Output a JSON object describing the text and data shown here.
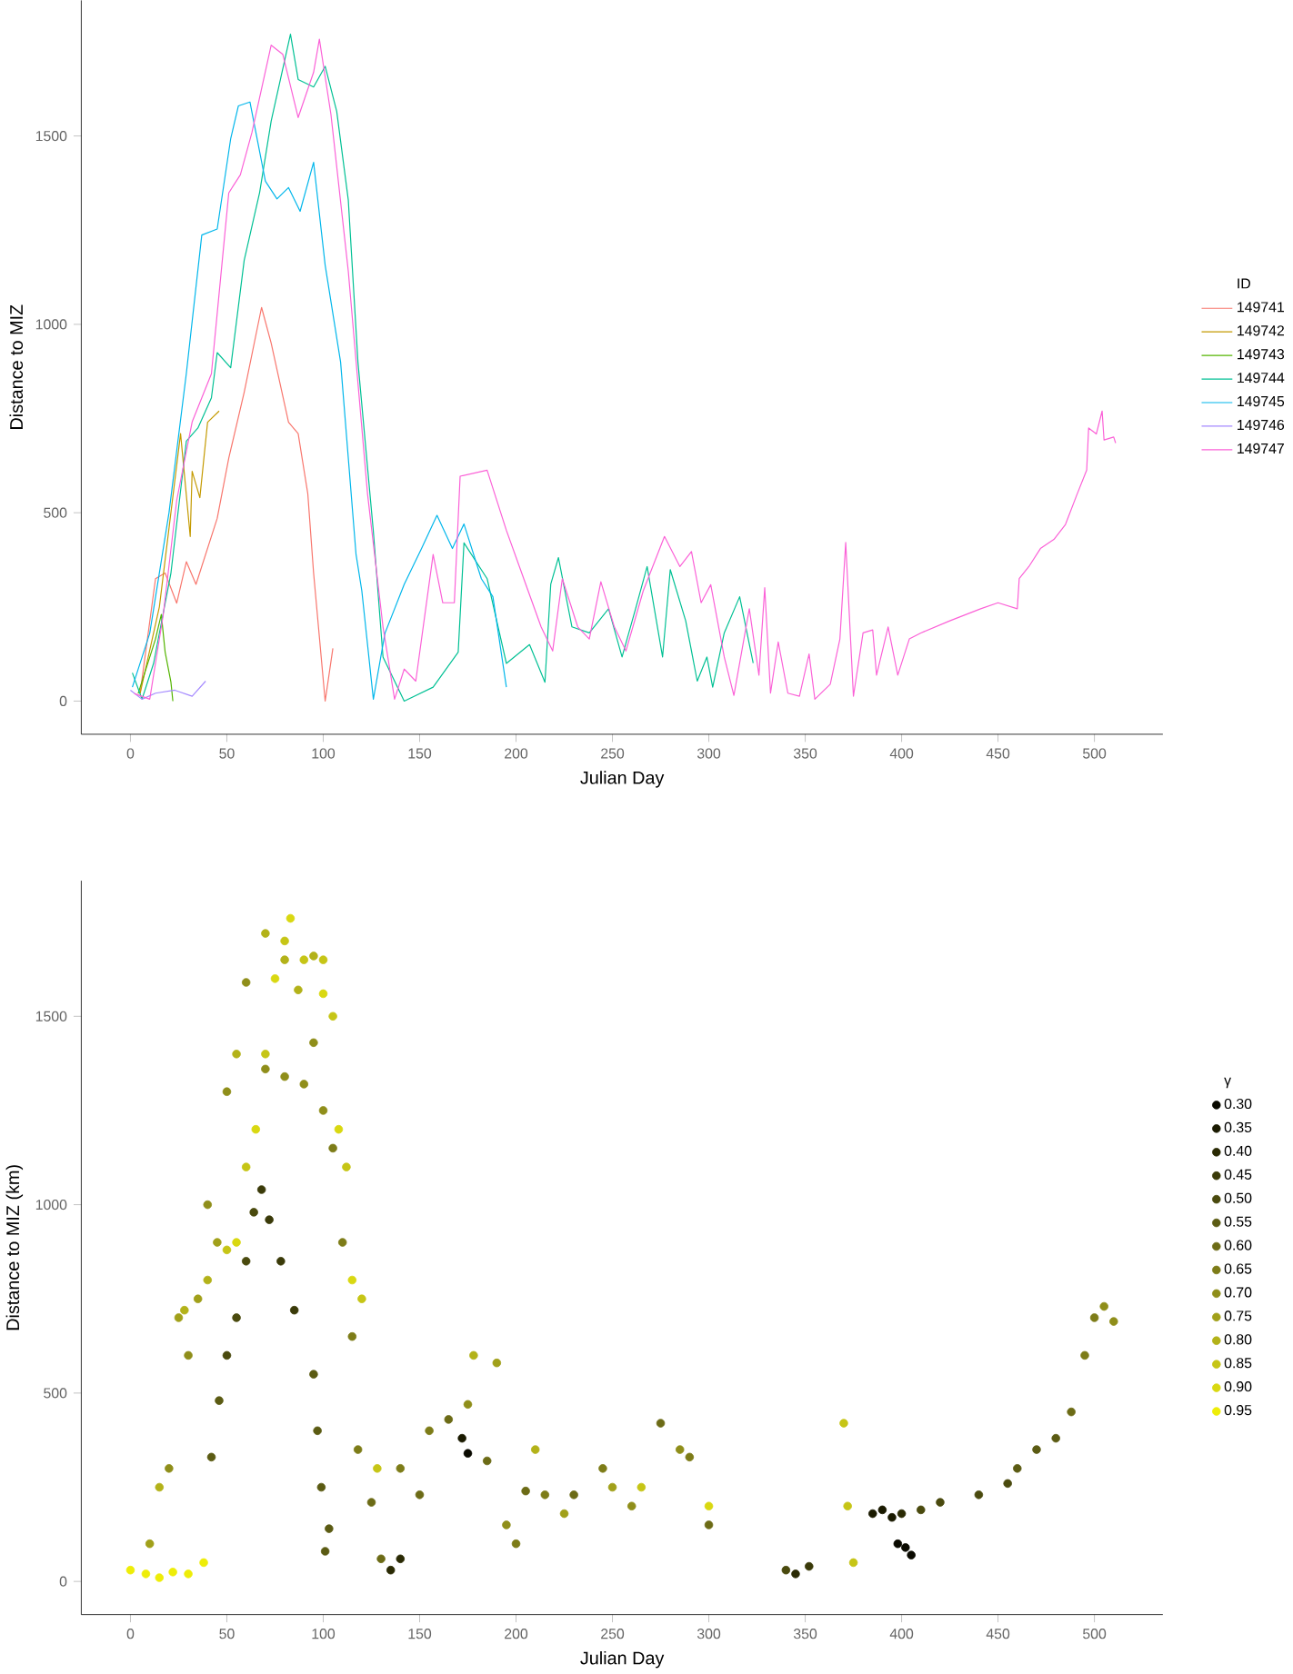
{
  "chart_data": [
    {
      "type": "line",
      "xlabel": "Julian Day",
      "ylabel": "Distance to MIZ",
      "legend_title": "ID",
      "legend": "right",
      "xlim": [
        -25.5,
        535.5
      ],
      "ylim": [
        -88,
        1860
      ],
      "xticks": [
        0,
        50,
        100,
        150,
        200,
        250,
        300,
        350,
        400,
        450,
        500
      ],
      "yticks": [
        0,
        500,
        1000,
        1500
      ],
      "series": [
        {
          "name": "149741",
          "color": "#f8766d",
          "x": [
            5,
            13,
            18,
            24,
            29,
            34,
            45,
            51,
            59,
            68,
            73,
            82,
            87,
            92,
            95,
            101,
            105
          ],
          "values": [
            20,
            325,
            340,
            260,
            370,
            310,
            485,
            645,
            820,
            1045,
            950,
            740,
            710,
            550,
            340,
            0,
            140
          ]
        },
        {
          "name": "149742",
          "color": "#c49a00",
          "x": [
            5,
            15,
            26,
            31,
            32,
            36,
            40,
            46
          ],
          "values": [
            20,
            250,
            710,
            437,
            610,
            540,
            740,
            770
          ]
        },
        {
          "name": "149743",
          "color": "#53b400",
          "x": [
            4,
            13,
            16,
            18,
            21,
            22
          ],
          "values": [
            20,
            165,
            230,
            130,
            50,
            0
          ]
        },
        {
          "name": "149744",
          "color": "#00c094",
          "x": [
            1,
            6,
            12,
            21,
            29,
            35,
            42,
            45,
            52,
            59,
            67,
            73,
            83,
            87,
            95,
            101,
            107,
            113,
            118,
            126,
            131,
            142,
            157,
            170,
            173,
            185,
            195,
            207,
            215,
            218,
            222,
            229,
            238,
            248,
            255,
            262,
            268,
            276,
            280,
            288,
            294,
            299,
            302,
            308,
            316,
            323
          ],
          "values": [
            75,
            5,
            100,
            340,
            690,
            725,
            805,
            925,
            885,
            1170,
            1350,
            1540,
            1770,
            1650,
            1630,
            1685,
            1565,
            1330,
            900,
            450,
            117,
            0,
            37,
            130,
            420,
            325,
            100,
            150,
            50,
            310,
            381,
            197,
            181,
            245,
            117,
            245,
            357,
            117,
            349,
            213,
            53,
            117,
            37,
            181,
            277,
            101
          ]
        },
        {
          "name": "149745",
          "color": "#00b6eb",
          "x": [
            1,
            10,
            20,
            29,
            37,
            45,
            52,
            56,
            62,
            70,
            76,
            82,
            88,
            95,
            101,
            109,
            117,
            120,
            126,
            132,
            142,
            151,
            159,
            167,
            173,
            182,
            188,
            195
          ],
          "values": [
            37,
            180,
            500,
            870,
            1237,
            1253,
            1493,
            1580,
            1590,
            1380,
            1333,
            1363,
            1300,
            1430,
            1157,
            900,
            390,
            293,
            5,
            180,
            310,
            405,
            493,
            405,
            470,
            325,
            277,
            37
          ]
        },
        {
          "name": "149746",
          "color": "#a58aff",
          "x": [
            0,
            6,
            13,
            23,
            32,
            39
          ],
          "values": [
            29,
            5,
            21,
            29,
            13,
            53
          ]
        },
        {
          "name": "149747",
          "color": "#fb61d7",
          "x": [
            2,
            10,
            17,
            24,
            32,
            42,
            51,
            57,
            63,
            73,
            79,
            87,
            95,
            98,
            104,
            113,
            123,
            131,
            137,
            142,
            148,
            157,
            162,
            168,
            171,
            185,
            195,
            204,
            213,
            219,
            224,
            232,
            238,
            244,
            251,
            257,
            266,
            277,
            285,
            291,
            296,
            301,
            308,
            313,
            321,
            326,
            329,
            332,
            336,
            341,
            347,
            352,
            355,
            363,
            368,
            371,
            375,
            380,
            385,
            387,
            393,
            398,
            404,
            410,
            425,
            441,
            450,
            460,
            461,
            466,
            472,
            479,
            485,
            491,
            496,
            497,
            501,
            504,
            505,
            510,
            511
          ],
          "values": [
            20,
            5,
            229,
            533,
            741,
            869,
            1349,
            1397,
            1509,
            1741,
            1717,
            1549,
            1669,
            1757,
            1557,
            1141,
            549,
            197,
            5,
            85,
            53,
            389,
            261,
            261,
            597,
            613,
            453,
            325,
            197,
            133,
            325,
            197,
            165,
            317,
            197,
            133,
            293,
            437,
            357,
            397,
            261,
            309,
            117,
            15,
            245,
            69,
            301,
            21,
            157,
            21,
            13,
            125,
            5,
            45,
            165,
            421,
            13,
            181,
            189,
            69,
            197,
            69,
            165,
            181,
            213,
            245,
            261,
            245,
            325,
            357,
            405,
            429,
            469,
            549,
            613,
            725,
            709,
            770,
            693,
            701,
            685
          ]
        }
      ]
    },
    {
      "type": "scatter",
      "xlabel": "Julian Day",
      "ylabel": "Distance to MIZ (km)",
      "legend_title": "γ",
      "legend": "right",
      "marker": "circle",
      "xlim": [
        -25.5,
        535.5
      ],
      "ylim": [
        -88,
        1860
      ],
      "xticks": [
        0,
        50,
        100,
        150,
        200,
        250,
        300,
        350,
        400,
        450,
        500
      ],
      "yticks": [
        0,
        500,
        1000,
        1500
      ],
      "series": [
        {
          "name": "0.30",
          "color": "#0a0a00",
          "x": [
            175,
            402,
            405,
            398
          ],
          "values": [
            340,
            90,
            70,
            100
          ]
        },
        {
          "name": "0.35",
          "color": "#1a1a00",
          "x": [
            385,
            390,
            395,
            172
          ],
          "values": [
            180,
            190,
            170,
            380
          ]
        },
        {
          "name": "0.40",
          "color": "#2a2a04",
          "x": [
            135,
            140,
            345,
            400
          ],
          "values": [
            30,
            60,
            20,
            180
          ]
        },
        {
          "name": "0.45",
          "color": "#3a3a09",
          "x": [
            68,
            72,
            78,
            85,
            352
          ],
          "values": [
            1040,
            960,
            850,
            720,
            40
          ]
        },
        {
          "name": "0.50",
          "color": "#4a4a0e",
          "x": [
            50,
            55,
            60,
            64,
            410,
            420,
            440,
            455,
            340
          ],
          "values": [
            600,
            700,
            850,
            980,
            190,
            210,
            230,
            260,
            30
          ]
        },
        {
          "name": "0.55",
          "color": "#5b5b13",
          "x": [
            42,
            46,
            95,
            97,
            99,
            101,
            103,
            460,
            470,
            480
          ],
          "values": [
            330,
            480,
            550,
            400,
            250,
            80,
            140,
            300,
            350,
            380
          ]
        },
        {
          "name": "0.60",
          "color": "#6c6b16",
          "x": [
            125,
            130,
            150,
            165,
            185,
            205,
            230,
            275,
            300,
            488
          ],
          "values": [
            210,
            60,
            230,
            430,
            320,
            240,
            230,
            420,
            150,
            450
          ]
        },
        {
          "name": "0.65",
          "color": "#7d7c18",
          "x": [
            105,
            110,
            115,
            118,
            140,
            155,
            200,
            215,
            245,
            290,
            495,
            500
          ],
          "values": [
            1150,
            900,
            650,
            350,
            300,
            400,
            100,
            230,
            300,
            330,
            600,
            700
          ]
        },
        {
          "name": "0.70",
          "color": "#8f8e1a",
          "x": [
            20,
            30,
            40,
            50,
            60,
            70,
            80,
            90,
            95,
            100,
            175,
            195,
            260,
            285,
            505,
            510
          ],
          "values": [
            300,
            600,
            1000,
            1300,
            1590,
            1360,
            1340,
            1320,
            1430,
            1250,
            470,
            150,
            200,
            350,
            730,
            690
          ]
        },
        {
          "name": "0.75",
          "color": "#a1a01a",
          "x": [
            10,
            25,
            35,
            45,
            190,
            225,
            250
          ],
          "values": [
            100,
            700,
            750,
            900,
            580,
            180,
            250
          ]
        },
        {
          "name": "0.80",
          "color": "#b3b219",
          "x": [
            15,
            28,
            40,
            55,
            70,
            80,
            87,
            95,
            178,
            210
          ],
          "values": [
            250,
            720,
            800,
            1400,
            1720,
            1650,
            1570,
            1660,
            600,
            350
          ]
        },
        {
          "name": "0.85",
          "color": "#c6c516",
          "x": [
            50,
            60,
            70,
            80,
            90,
            100,
            105,
            112,
            120,
            128,
            265,
            370,
            372,
            375
          ],
          "values": [
            880,
            1100,
            1400,
            1700,
            1650,
            1650,
            1500,
            1100,
            750,
            300,
            250,
            420,
            200,
            50
          ]
        },
        {
          "name": "0.90",
          "color": "#d9d811",
          "x": [
            55,
            65,
            75,
            83,
            100,
            108,
            115,
            300
          ],
          "values": [
            900,
            1200,
            1600,
            1760,
            1560,
            1200,
            800,
            200
          ]
        },
        {
          "name": "0.95",
          "color": "#eeed08",
          "x": [
            0,
            8,
            15,
            22,
            30,
            38
          ],
          "values": [
            30,
            20,
            10,
            25,
            20,
            50
          ]
        }
      ]
    }
  ]
}
